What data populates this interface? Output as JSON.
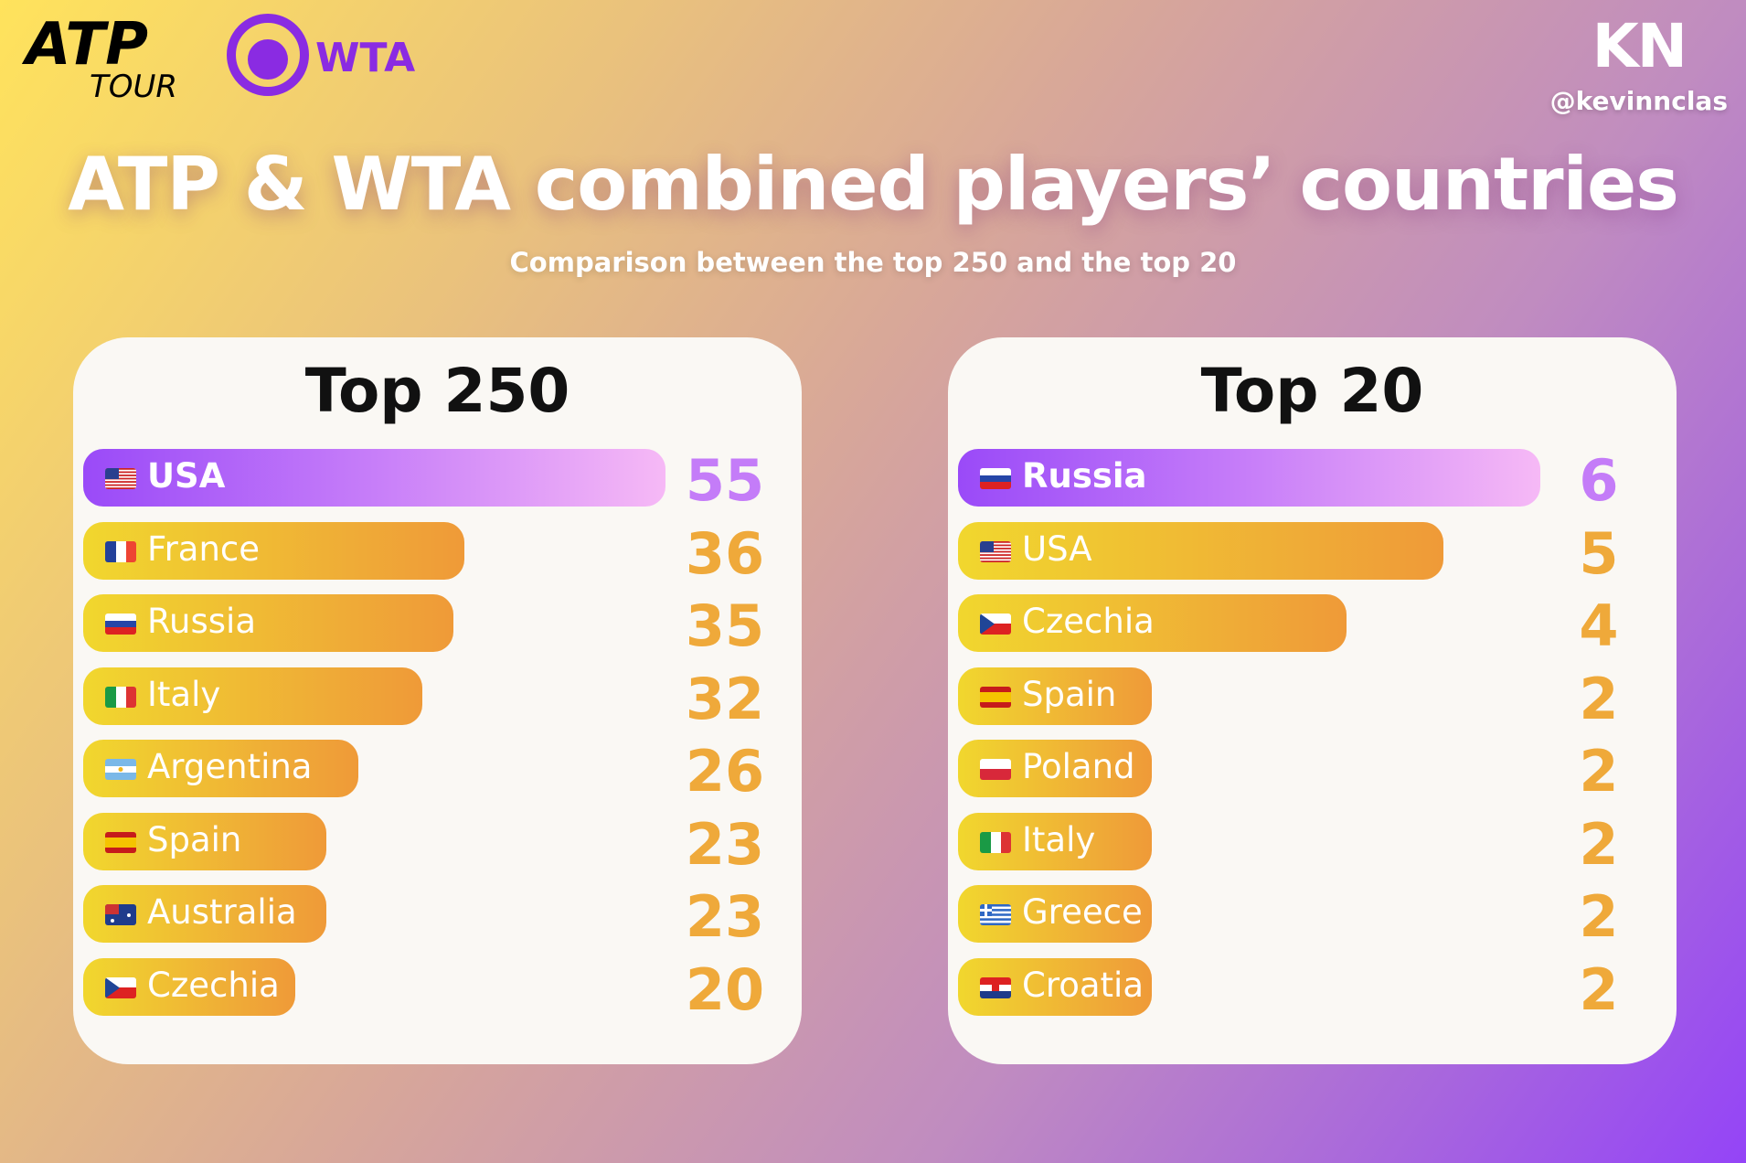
{
  "logos": {
    "atp": "ATP TOUR",
    "wta": "WTA"
  },
  "brand": {
    "logo": "KN",
    "handle": "@kevinnclas"
  },
  "title": "ATP & WTA combined players’ countries",
  "subtitle": "Comparison between the top 250 and the top 20",
  "colors": {
    "top_bar": "#9a4af8",
    "bar": "#efac37",
    "value": "#efa93a"
  },
  "chart_data": [
    {
      "type": "bar",
      "orientation": "horizontal",
      "title": "Top 250",
      "xlim": [
        0,
        55
      ],
      "categories": [
        "USA",
        "France",
        "Russia",
        "Italy",
        "Argentina",
        "Spain",
        "Australia",
        "Czechia"
      ],
      "flags": [
        "us",
        "fr",
        "ru",
        "it",
        "ar",
        "es",
        "au",
        "cz"
      ],
      "values": [
        55,
        36,
        35,
        32,
        26,
        23,
        23,
        20
      ]
    },
    {
      "type": "bar",
      "orientation": "horizontal",
      "title": "Top 20",
      "xlim": [
        0,
        6
      ],
      "categories": [
        "Russia",
        "USA",
        "Czechia",
        "Spain",
        "Poland",
        "Italy",
        "Greece",
        "Croatia"
      ],
      "flags": [
        "ru",
        "us",
        "cz",
        "es",
        "pl",
        "it",
        "gr",
        "hr"
      ],
      "values": [
        6,
        5,
        4,
        2,
        2,
        2,
        2,
        2
      ]
    }
  ]
}
